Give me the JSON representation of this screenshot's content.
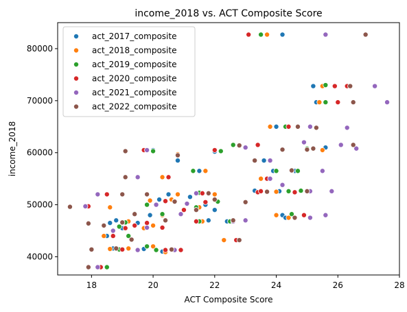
{
  "chart_data": {
    "type": "scatter",
    "title": "income_2018 vs. ACT Composite Score",
    "xlabel": "ACT Composite Score",
    "ylabel": "income_2018",
    "xlim": [
      16.9,
      28.0
    ],
    "ylim": [
      36500,
      85000
    ],
    "xticks": [
      18,
      20,
      22,
      24,
      26,
      28
    ],
    "yticks": [
      40000,
      50000,
      60000,
      70000,
      80000
    ],
    "grid": false,
    "legend_position": "top-left",
    "series": [
      {
        "name": "act_2017_composite",
        "color": "#1f77b4",
        "points": [
          [
            24.2,
            82700
          ],
          [
            25.2,
            72800
          ],
          [
            25.3,
            69700
          ],
          [
            25.6,
            61000
          ],
          [
            24.0,
            65000
          ],
          [
            20.0,
            60500
          ],
          [
            20.8,
            58500
          ],
          [
            23.6,
            58500
          ],
          [
            23.9,
            56500
          ],
          [
            24.1,
            52600
          ],
          [
            24.2,
            48000
          ],
          [
            24.3,
            47500
          ],
          [
            22.0,
            60200
          ],
          [
            21.5,
            56500
          ],
          [
            21.2,
            51500
          ],
          [
            21.7,
            50000
          ],
          [
            22.0,
            49000
          ],
          [
            20.5,
            52000
          ],
          [
            20.2,
            51000
          ],
          [
            19.8,
            50000
          ],
          [
            19.9,
            48000
          ],
          [
            19.5,
            46500
          ],
          [
            19.4,
            46000
          ],
          [
            19.0,
            45500
          ],
          [
            18.8,
            47000
          ],
          [
            18.5,
            44000
          ],
          [
            18.6,
            46500
          ],
          [
            18.7,
            41600
          ],
          [
            18.2,
            38000
          ],
          [
            19.7,
            41500
          ],
          [
            20.3,
            41000
          ],
          [
            21.8,
            47000
          ],
          [
            23.3,
            52700
          ],
          [
            24.6,
            56500
          ],
          [
            22.4,
            46800
          ]
        ]
      },
      {
        "name": "act_2018_composite",
        "color": "#ff7f0e",
        "points": [
          [
            23.7,
            82700
          ],
          [
            25.5,
            72800
          ],
          [
            25.4,
            69700
          ],
          [
            25.5,
            60500
          ],
          [
            23.8,
            65000
          ],
          [
            20.8,
            59700
          ],
          [
            20.3,
            55300
          ],
          [
            23.5,
            55000
          ],
          [
            24.0,
            52500
          ],
          [
            24.0,
            48000
          ],
          [
            24.4,
            47500
          ],
          [
            22.6,
            61500
          ],
          [
            21.7,
            56500
          ],
          [
            22.0,
            52000
          ],
          [
            21.5,
            49500
          ],
          [
            20.8,
            52000
          ],
          [
            20.6,
            51000
          ],
          [
            19.9,
            50800
          ],
          [
            20.3,
            48000
          ],
          [
            20.0,
            46000
          ],
          [
            19.2,
            46800
          ],
          [
            19.7,
            45500
          ],
          [
            18.6,
            49500
          ],
          [
            17.8,
            49700
          ],
          [
            18.4,
            44000
          ],
          [
            18.6,
            41500
          ],
          [
            18.5,
            37900
          ],
          [
            19.2,
            41600
          ],
          [
            20.0,
            42000
          ],
          [
            20.4,
            40900
          ],
          [
            22.3,
            43200
          ],
          [
            21.6,
            46800
          ],
          [
            18.2,
            38000
          ]
        ]
      },
      {
        "name": "act_2019_composite",
        "color": "#2ca02c",
        "points": [
          [
            23.5,
            82700
          ],
          [
            25.6,
            73000
          ],
          [
            25.6,
            69700
          ],
          [
            25.0,
            60800
          ],
          [
            24.3,
            65000
          ],
          [
            20.0,
            60300
          ],
          [
            21.3,
            56500
          ],
          [
            23.8,
            58500
          ],
          [
            24.0,
            56500
          ],
          [
            24.4,
            52600
          ],
          [
            24.5,
            48200
          ],
          [
            22.6,
            61500
          ],
          [
            22.2,
            60300
          ],
          [
            21.5,
            52300
          ],
          [
            22.1,
            50600
          ],
          [
            21.4,
            49500
          ],
          [
            20.7,
            50700
          ],
          [
            20.3,
            48200
          ],
          [
            19.8,
            50000
          ],
          [
            19.1,
            46600
          ],
          [
            18.9,
            45800
          ],
          [
            19.2,
            44000
          ],
          [
            18.9,
            41400
          ],
          [
            18.5,
            38000
          ],
          [
            19.8,
            42000
          ],
          [
            20.1,
            41300
          ],
          [
            21.5,
            46800
          ],
          [
            22.5,
            46800
          ],
          [
            24.8,
            52700
          ],
          [
            24.7,
            56500
          ],
          [
            19.4,
            48300
          ],
          [
            22.8,
            43200
          ]
        ]
      },
      {
        "name": "act_2020_composite",
        "color": "#d62728",
        "points": [
          [
            23.1,
            82700
          ],
          [
            26.3,
            72800
          ],
          [
            25.9,
            72800
          ],
          [
            26.0,
            69700
          ],
          [
            24.4,
            65000
          ],
          [
            19.7,
            60500
          ],
          [
            20.5,
            55300
          ],
          [
            23.4,
            61500
          ],
          [
            23.7,
            55000
          ],
          [
            24.5,
            56500
          ],
          [
            24.9,
            48000
          ],
          [
            23.4,
            52400
          ],
          [
            22.0,
            60500
          ],
          [
            21.6,
            52200
          ],
          [
            21.7,
            50500
          ],
          [
            21.0,
            49000
          ],
          [
            20.4,
            50700
          ],
          [
            19.8,
            46500
          ],
          [
            19.4,
            46000
          ],
          [
            19.1,
            45500
          ],
          [
            18.5,
            52000
          ],
          [
            17.9,
            49700
          ],
          [
            18.7,
            44000
          ],
          [
            19.0,
            41400
          ],
          [
            18.3,
            38000
          ],
          [
            20.3,
            45600
          ],
          [
            20.4,
            41300
          ],
          [
            20.9,
            41300
          ],
          [
            22.7,
            43200
          ],
          [
            23.5,
            52600
          ],
          [
            24.6,
            52400
          ],
          [
            21.4,
            46800
          ]
        ]
      },
      {
        "name": "act_2021_composite",
        "color": "#9467bd",
        "points": [
          [
            25.6,
            82700
          ],
          [
            27.2,
            72800
          ],
          [
            27.6,
            69700
          ],
          [
            26.3,
            64800
          ],
          [
            25.1,
            65000
          ],
          [
            19.8,
            60500
          ],
          [
            19.5,
            55300
          ],
          [
            23.8,
            58500
          ],
          [
            23.8,
            55000
          ],
          [
            24.5,
            56500
          ],
          [
            25.1,
            52600
          ],
          [
            25.1,
            47500
          ],
          [
            25.6,
            48000
          ],
          [
            25.8,
            52600
          ],
          [
            26.1,
            61500
          ],
          [
            26.6,
            60800
          ],
          [
            25.5,
            56500
          ],
          [
            23.0,
            61000
          ],
          [
            21.4,
            52200
          ],
          [
            21.1,
            50200
          ],
          [
            20.9,
            48200
          ],
          [
            20.1,
            50000
          ],
          [
            19.8,
            45600
          ],
          [
            19.0,
            46600
          ],
          [
            18.7,
            45000
          ],
          [
            18.2,
            52000
          ],
          [
            17.8,
            49700
          ],
          [
            18.2,
            38000
          ],
          [
            19.5,
            41300
          ],
          [
            20.7,
            41300
          ],
          [
            22.6,
            46800
          ],
          [
            23.0,
            47000
          ],
          [
            24.2,
            53800
          ],
          [
            24.9,
            62000
          ]
        ]
      },
      {
        "name": "act_2022_composite",
        "color": "#8c564b",
        "points": [
          [
            26.9,
            82700
          ],
          [
            26.4,
            72800
          ],
          [
            26.5,
            69700
          ],
          [
            26.5,
            61500
          ],
          [
            25.3,
            64800
          ],
          [
            24.7,
            65000
          ],
          [
            19.1,
            60300
          ],
          [
            19.1,
            55300
          ],
          [
            20.8,
            59500
          ],
          [
            23.3,
            58500
          ],
          [
            22.8,
            61400
          ],
          [
            24.2,
            60600
          ],
          [
            25.2,
            60800
          ],
          [
            24.5,
            56500
          ],
          [
            25.0,
            52600
          ],
          [
            25.0,
            60600
          ],
          [
            24.6,
            47500
          ],
          [
            23.7,
            52500
          ],
          [
            21.8,
            52200
          ],
          [
            22.0,
            51000
          ],
          [
            21.4,
            49000
          ],
          [
            20.7,
            50600
          ],
          [
            20.4,
            47000
          ],
          [
            19.8,
            52000
          ],
          [
            19.4,
            48200
          ],
          [
            19.0,
            46600
          ],
          [
            18.4,
            46000
          ],
          [
            17.9,
            46400
          ],
          [
            17.3,
            49600
          ],
          [
            18.0,
            41400
          ],
          [
            17.9,
            38000
          ],
          [
            18.8,
            41600
          ],
          [
            19.0,
            52000
          ],
          [
            19.3,
            43300
          ],
          [
            20.6,
            41400
          ],
          [
            23.0,
            50500
          ],
          [
            22.6,
            47000
          ],
          [
            22.8,
            43200
          ],
          [
            24.5,
            56600
          ]
        ]
      }
    ]
  }
}
